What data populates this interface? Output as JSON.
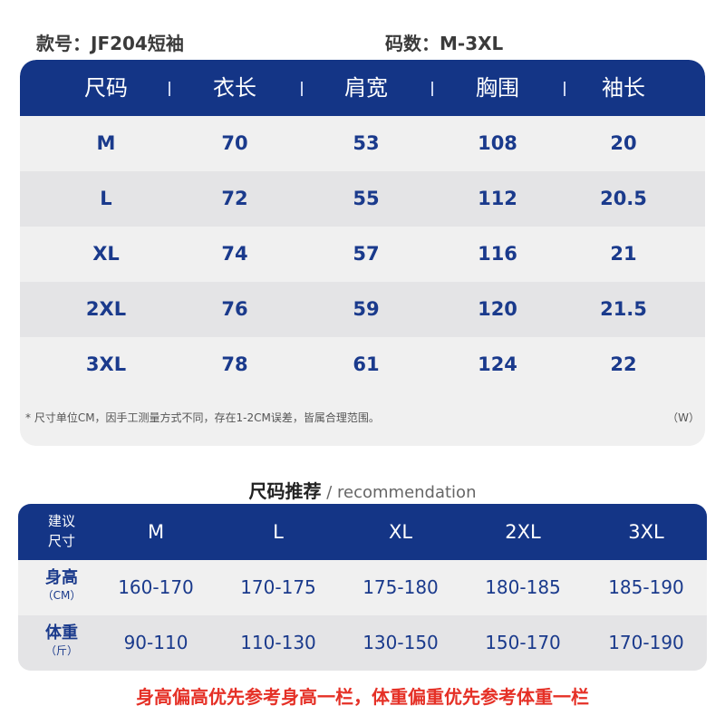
{
  "info": {
    "style_no": "款号：JF204短袖",
    "size_range": "码数：M-3XL"
  },
  "size_chart": {
    "headers": [
      "尺码",
      "衣长",
      "肩宽",
      "胸围",
      "袖长"
    ],
    "rows": [
      [
        "M",
        "70",
        "53",
        "108",
        "20"
      ],
      [
        "L",
        "72",
        "55",
        "112",
        "20.5"
      ],
      [
        "XL",
        "74",
        "57",
        "116",
        "21"
      ],
      [
        "2XL",
        "76",
        "59",
        "120",
        "21.5"
      ],
      [
        "3XL",
        "78",
        "61",
        "124",
        "22"
      ]
    ],
    "note": "* 尺寸单位CM，因手工测量方式不同，存在1-2CM误差，皆属合理范围。",
    "unit_mark": "（W）"
  },
  "recommendation": {
    "title_main": "尺码推荐",
    "title_sub": " / recommendation",
    "corner_label_line1": "建议",
    "corner_label_line2": "尺寸",
    "sizes": [
      "M",
      "L",
      "XL",
      "2XL",
      "3XL"
    ],
    "height": {
      "label": "身高",
      "unit": "（CM）",
      "values": [
        "160-170",
        "170-175",
        "175-180",
        "180-185",
        "185-190"
      ]
    },
    "weight": {
      "label": "体重",
      "unit": "（斤）",
      "values": [
        "90-110",
        "110-130",
        "130-150",
        "150-170",
        "170-190"
      ]
    }
  },
  "footer_note": "身高偏高优先参考身高一栏，体重偏重优先参考体重一栏",
  "colors": {
    "header_bg": "#143586",
    "value_text": "#1a3a8c",
    "alert_text": "#e53026"
  }
}
